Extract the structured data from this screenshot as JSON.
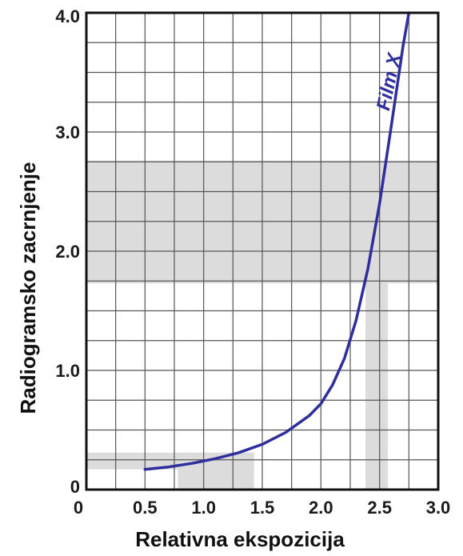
{
  "chart_data": {
    "type": "line",
    "title": "",
    "xlabel": "Relativna ekspozicija",
    "ylabel": "Radiogramsko zacrnjenje",
    "xlim": [
      0,
      3.0
    ],
    "ylim": [
      0,
      4.0
    ],
    "x_ticks": [
      "0",
      "0.5",
      "1.0",
      "1.5",
      "2.0",
      "2.5",
      "3.0"
    ],
    "y_ticks": [
      "0",
      "1.0",
      "2.0",
      "3.0",
      "4.0"
    ],
    "x_tick_values": [
      0,
      0.5,
      1.0,
      1.5,
      2.0,
      2.5,
      3.0
    ],
    "y_tick_values": [
      0,
      1.0,
      2.0,
      3.0,
      4.0
    ],
    "grid": true,
    "grid_x_step": 0.25,
    "grid_y_step": 0.25,
    "series": [
      {
        "name": "Film X",
        "color": "#2e2e9c",
        "x": [
          0.5,
          0.7,
          0.9,
          1.1,
          1.3,
          1.5,
          1.7,
          1.9,
          2.0,
          2.1,
          2.2,
          2.3,
          2.4,
          2.5,
          2.6,
          2.7,
          2.75
        ],
        "y": [
          0.17,
          0.19,
          0.22,
          0.26,
          0.31,
          0.38,
          0.48,
          0.62,
          0.72,
          0.88,
          1.1,
          1.42,
          1.85,
          2.4,
          3.05,
          3.72,
          4.0
        ]
      }
    ],
    "highlight_bands": [
      {
        "orientation": "horizontal",
        "from": 1.73,
        "to": 2.76
      },
      {
        "orientation": "vertical",
        "from": 2.38,
        "to": 2.57,
        "y_max": 2.76
      },
      {
        "orientation": "horizontal",
        "from": 0.17,
        "to": 0.31,
        "x_max": 1.43
      },
      {
        "orientation": "vertical",
        "from": 0.78,
        "to": 1.43,
        "y_max": 0.31
      }
    ],
    "band_color": "#dcdcdc"
  }
}
